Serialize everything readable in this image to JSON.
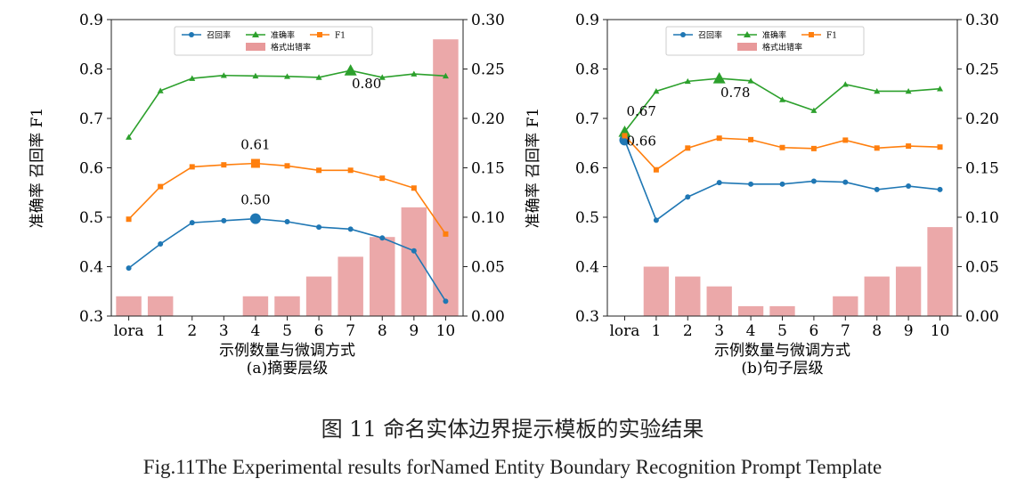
{
  "figure": {
    "caption_cn": "图 11 命名实体边界提示模板的实验结果",
    "caption_en": "Fig.11The Experimental results forNamed Entity Boundary Recognition Prompt Template"
  },
  "colors": {
    "recall": "#1f77b4",
    "precision": "#2ca02c",
    "f1": "#ff7f0e",
    "error": "#e8999a"
  },
  "chart_data": [
    {
      "type": "line",
      "subtitle": "(a)摘要层级",
      "xlabel": "示例数量与微调方式",
      "ylabel": "准确率 召回率 F1",
      "categories": [
        "lora",
        "1",
        "2",
        "3",
        "4",
        "5",
        "6",
        "7",
        "8",
        "9",
        "10"
      ],
      "ylim": [
        0.3,
        0.9
      ],
      "yticks": [
        "0.3",
        "0.4",
        "0.5",
        "0.6",
        "0.7",
        "0.8",
        "0.9"
      ],
      "y2lim": [
        0.0,
        0.3
      ],
      "y2ticks": [
        "0.00",
        "0.05",
        "0.10",
        "0.15",
        "0.20",
        "0.25",
        "0.30"
      ],
      "legend_position": "top-center",
      "series": [
        {
          "name": "召回率",
          "key": "recall",
          "marker": "circle",
          "values": [
            0.397,
            0.446,
            0.489,
            0.493,
            0.497,
            0.491,
            0.48,
            0.476,
            0.458,
            0.432,
            0.33
          ]
        },
        {
          "name": "准确率",
          "key": "precision",
          "marker": "triangle",
          "values": [
            0.662,
            0.756,
            0.781,
            0.787,
            0.786,
            0.785,
            0.783,
            0.797,
            0.783,
            0.79,
            0.786
          ]
        },
        {
          "name": "F1",
          "key": "f1",
          "marker": "square",
          "values": [
            0.496,
            0.562,
            0.602,
            0.606,
            0.609,
            0.604,
            0.595,
            0.595,
            0.579,
            0.559,
            0.466
          ]
        }
      ],
      "bar_series": {
        "name": "格式出错率",
        "key": "error",
        "values": [
          0.02,
          0.02,
          0.0,
          0.0,
          0.02,
          0.02,
          0.04,
          0.06,
          0.08,
          0.11,
          0.28
        ]
      },
      "annotations": [
        {
          "text": "0.50",
          "series": "recall",
          "index": 4
        },
        {
          "text": "0.61",
          "series": "f1",
          "index": 4
        },
        {
          "text": "0.80",
          "series": "precision",
          "index": 7
        }
      ]
    },
    {
      "type": "line",
      "subtitle": "(b)句子层级",
      "xlabel": "示例数量与微调方式",
      "ylabel": "准确率 召回率 F1",
      "categories": [
        "lora",
        "1",
        "2",
        "3",
        "4",
        "5",
        "6",
        "7",
        "8",
        "9",
        "10"
      ],
      "ylim": [
        0.3,
        0.9
      ],
      "yticks": [
        "0.3",
        "0.4",
        "0.5",
        "0.6",
        "0.7",
        "0.8",
        "0.9"
      ],
      "y2lim": [
        0.0,
        0.3
      ],
      "y2ticks": [
        "0.00",
        "0.05",
        "0.10",
        "0.15",
        "0.20",
        "0.25",
        "0.30"
      ],
      "legend_position": "top-center",
      "series": [
        {
          "name": "召回率",
          "key": "recall",
          "marker": "circle",
          "values": [
            0.656,
            0.494,
            0.541,
            0.57,
            0.567,
            0.567,
            0.573,
            0.571,
            0.556,
            0.563,
            0.556
          ]
        },
        {
          "name": "准确率",
          "key": "precision",
          "marker": "triangle",
          "values": [
            0.673,
            0.755,
            0.775,
            0.781,
            0.776,
            0.738,
            0.716,
            0.769,
            0.755,
            0.755,
            0.76
          ]
        },
        {
          "name": "F1",
          "key": "f1",
          "marker": "square",
          "values": [
            0.665,
            0.596,
            0.64,
            0.66,
            0.657,
            0.641,
            0.639,
            0.656,
            0.64,
            0.644,
            0.642
          ]
        }
      ],
      "bar_series": {
        "name": "格式出错率",
        "key": "error",
        "values": [
          0.0,
          0.05,
          0.04,
          0.03,
          0.01,
          0.01,
          0.0,
          0.02,
          0.04,
          0.05,
          0.09
        ]
      },
      "annotations": [
        {
          "text": "0.67",
          "series": "precision",
          "index": 0
        },
        {
          "text": "0.66",
          "series": "recall",
          "index": 0
        },
        {
          "text": "0.78",
          "series": "precision",
          "index": 3
        }
      ]
    }
  ]
}
